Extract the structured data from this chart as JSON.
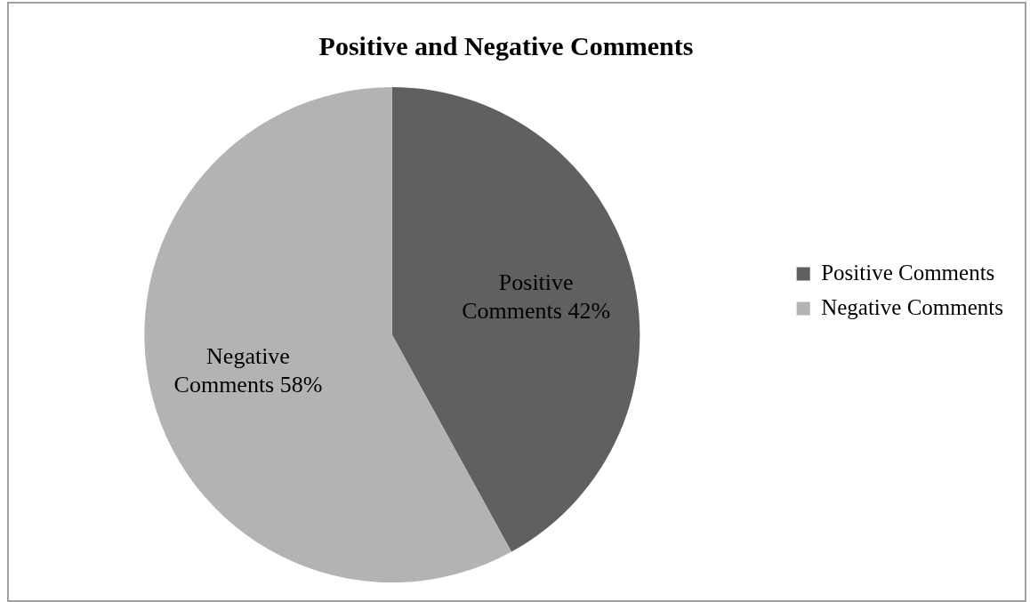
{
  "chart_data": {
    "type": "pie",
    "title": "Positive and Negative Comments",
    "categories": [
      "Positive Comments",
      "Negative Comments"
    ],
    "values": [
      42,
      58
    ],
    "colors": [
      "#606060",
      "#b3b3b3"
    ],
    "value_labels": [
      "Positive Comments 42%",
      "Negative Comments 58%"
    ],
    "legend": "right"
  }
}
